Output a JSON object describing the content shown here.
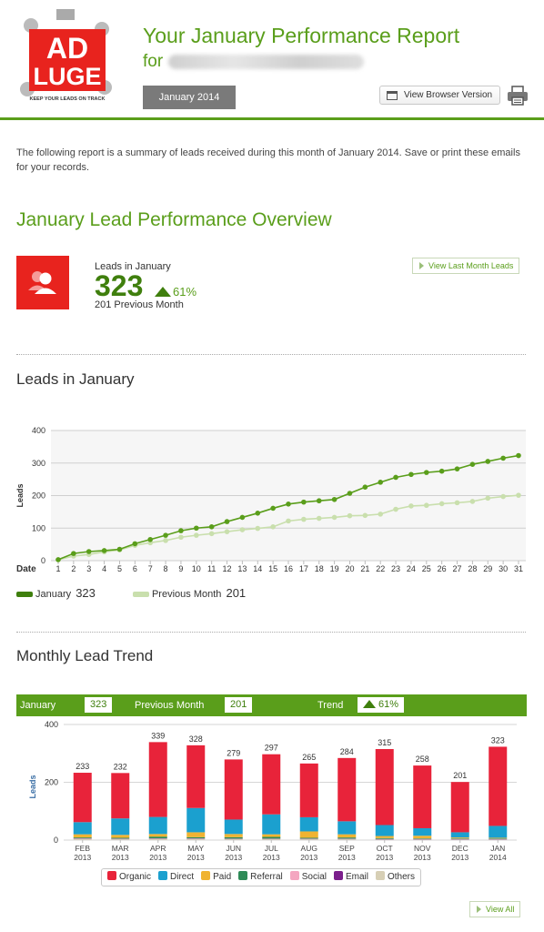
{
  "header": {
    "logo_text_top": "AD",
    "logo_text_bottom": "LUGE",
    "logo_tagline": "KEEP YOUR LEADS ON TRACK",
    "title": "Your January Performance Report",
    "for_label": "for",
    "month_badge": "January 2014",
    "browser_button": "View Browser Version"
  },
  "intro": "The following report is a summary of leads received during this month of January 2014. Save or print these emails for your records.",
  "overview": {
    "title": "January Lead Performance Overview",
    "leads_label": "Leads in January",
    "leads_value": "323",
    "trend": "61%",
    "previous": "201 Previous Month",
    "view_last_month": "View Last Month Leads"
  },
  "line_chart": {
    "section_title": "Leads in January",
    "legend_current": "January",
    "legend_current_total": "323",
    "legend_previous": "Previous Month",
    "legend_previous_total": "201"
  },
  "chart_data": [
    {
      "type": "line",
      "xlabel": "Date",
      "ylabel": "Leads",
      "ylim": [
        0,
        400
      ],
      "yticks": [
        0,
        100,
        200,
        300,
        400
      ],
      "x": [
        1,
        2,
        3,
        4,
        5,
        6,
        7,
        8,
        9,
        10,
        11,
        12,
        13,
        14,
        15,
        16,
        17,
        18,
        19,
        20,
        21,
        22,
        23,
        24,
        25,
        26,
        27,
        28,
        29,
        30,
        31
      ],
      "series": [
        {
          "name": "January",
          "color": "#5a9e1b",
          "values": [
            3,
            22,
            28,
            31,
            35,
            52,
            65,
            78,
            92,
            100,
            104,
            120,
            133,
            146,
            161,
            174,
            180,
            184,
            188,
            207,
            226,
            241,
            256,
            265,
            271,
            275,
            282,
            296,
            305,
            315,
            323
          ]
        },
        {
          "name": "Previous Month",
          "color": "#c9dfad",
          "values": [
            3,
            14,
            19,
            27,
            33,
            47,
            55,
            62,
            72,
            78,
            83,
            89,
            95,
            99,
            104,
            122,
            127,
            130,
            133,
            138,
            139,
            143,
            158,
            168,
            170,
            175,
            178,
            182,
            192,
            197,
            201
          ]
        }
      ],
      "grid": true,
      "legend": "bottom-left"
    },
    {
      "type": "bar",
      "stacked": true,
      "ylabel": "Leads",
      "ylim": [
        0,
        400
      ],
      "yticks": [
        0,
        200,
        400
      ],
      "categories": [
        "FEB 2013",
        "MAR 2013",
        "APR 2013",
        "MAY 2013",
        "JUN 2013",
        "JUL 2013",
        "AUG 2013",
        "SEP 2013",
        "OCT 2013",
        "NOV 2013",
        "DEC 2013",
        "JAN 2014"
      ],
      "totals": [
        233,
        232,
        339,
        328,
        279,
        297,
        265,
        284,
        315,
        258,
        201,
        323
      ],
      "series": [
        {
          "name": "Others",
          "color": "#d7cfb5",
          "values": [
            4,
            3,
            4,
            4,
            3,
            3,
            3,
            3,
            2,
            2,
            2,
            2
          ]
        },
        {
          "name": "Email",
          "color": "#7b1f8c",
          "values": [
            1,
            1,
            1,
            1,
            1,
            1,
            1,
            1,
            1,
            1,
            1,
            1
          ]
        },
        {
          "name": "Social",
          "color": "#f4a6c0",
          "values": [
            1,
            1,
            1,
            1,
            1,
            1,
            1,
            1,
            1,
            1,
            1,
            1
          ]
        },
        {
          "name": "Referral",
          "color": "#2e8b57",
          "values": [
            3,
            3,
            6,
            4,
            5,
            6,
            3,
            4,
            3,
            2,
            2,
            2
          ]
        },
        {
          "name": "Paid",
          "color": "#f0b331",
          "values": [
            11,
            10,
            9,
            17,
            11,
            9,
            22,
            11,
            7,
            9,
            3,
            2
          ]
        },
        {
          "name": "Direct",
          "color": "#1ba0cf",
          "values": [
            42,
            57,
            59,
            84,
            50,
            69,
            49,
            45,
            38,
            26,
            18,
            41
          ]
        },
        {
          "name": "Organic",
          "color": "#e8233a",
          "values": [
            171,
            157,
            259,
            217,
            208,
            208,
            186,
            219,
            263,
            217,
            174,
            274
          ]
        }
      ],
      "grid": true,
      "legend": "bottom"
    }
  ],
  "monthly": {
    "section_title": "Monthly Lead Trend",
    "current_label": "January",
    "current_value": "323",
    "previous_label": "Previous Month",
    "previous_value": "201",
    "trend_label": "Trend",
    "trend_value": "61%",
    "legend": [
      "Organic",
      "Direct",
      "Paid",
      "Referral",
      "Social",
      "Email",
      "Others"
    ],
    "view_all": "View All"
  }
}
